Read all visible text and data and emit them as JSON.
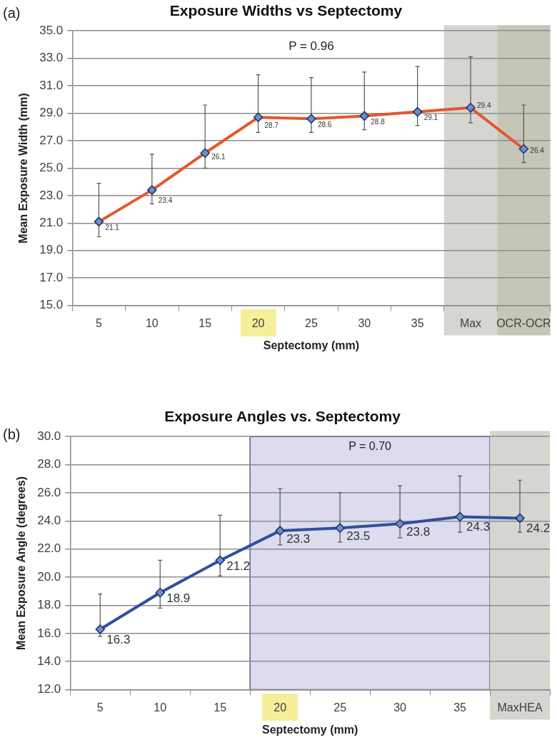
{
  "chart_data": [
    {
      "type": "line",
      "title": "Exposure Widths vs Septectomy",
      "xlabel": "Septectomy (mm)",
      "ylabel": "Mean Exposure Width (mm)",
      "categories": [
        "5",
        "10",
        "15",
        "20",
        "25",
        "30",
        "35",
        "Max",
        "OCR-OCR"
      ],
      "series": [
        {
          "color": "#e4572e",
          "values": [
            21.1,
            23.4,
            26.1,
            28.7,
            28.6,
            28.8,
            29.1,
            29.4,
            26.4
          ],
          "errors": [
            [
              20.0,
              23.9
            ],
            [
              22.4,
              26.0
            ],
            [
              25.0,
              29.6
            ],
            [
              27.6,
              31.8
            ],
            [
              27.6,
              31.6
            ],
            [
              27.8,
              32.0
            ],
            [
              28.1,
              32.4
            ],
            [
              28.3,
              33.1
            ],
            [
              25.4,
              29.6
            ]
          ]
        }
      ],
      "ylim": [
        15,
        35
      ],
      "yticks": [
        {
          "value": 15,
          "label": "15.0"
        },
        {
          "value": 17,
          "label": "17.0"
        },
        {
          "value": 19,
          "label": "19.0"
        },
        {
          "value": 21,
          "label": "21.0"
        },
        {
          "value": 23,
          "label": "23.0"
        },
        {
          "value": 25,
          "label": "25.0"
        },
        {
          "value": 27,
          "label": "27.0"
        },
        {
          "value": 29,
          "label": "29.0"
        },
        {
          "value": 31,
          "label": "31.0"
        },
        {
          "value": 33,
          "label": "33.0"
        },
        {
          "value": 35,
          "label": "35.0"
        }
      ],
      "grid": "y",
      "marker": "diamond",
      "data_labels": true,
      "bands": [
        {
          "axis": "x",
          "from": "Max",
          "to": "Max",
          "color": "#d6d6d0"
        },
        {
          "axis": "x",
          "from": "OCR-OCR",
          "to": "OCR-OCR",
          "color": "#c6c6b8"
        }
      ],
      "annotations": [
        "(a)",
        "P = 0.96"
      ]
    },
    {
      "type": "line",
      "title": "Exposure Angles vs. Septectomy",
      "xlabel": "Septectomy (mm)",
      "ylabel": "Mean Exposure Angle (degrees)",
      "categories": [
        "5",
        "10",
        "15",
        "20",
        "25",
        "30",
        "35",
        "MaxHEA"
      ],
      "series": [
        {
          "color": "#2f4f9f",
          "values": [
            16.3,
            18.9,
            21.2,
            23.3,
            23.5,
            23.8,
            24.3,
            24.2
          ],
          "errors": [
            [
              15.8,
              18.8
            ],
            [
              17.8,
              21.2
            ],
            [
              20.1,
              24.4
            ],
            [
              22.3,
              26.3
            ],
            [
              22.5,
              26.0
            ],
            [
              22.8,
              26.5
            ],
            [
              23.2,
              27.2
            ],
            [
              23.2,
              26.9
            ]
          ]
        }
      ],
      "ylim": [
        12,
        30
      ],
      "yticks": [
        {
          "value": 12,
          "label": "12.0"
        },
        {
          "value": 14,
          "label": "14.0"
        },
        {
          "value": 16,
          "label": "16.0"
        },
        {
          "value": 18,
          "label": "18.0"
        },
        {
          "value": 20,
          "label": "20.0"
        },
        {
          "value": 22,
          "label": "22.0"
        },
        {
          "value": 24,
          "label": "24.0"
        },
        {
          "value": 26,
          "label": "26.0"
        },
        {
          "value": 28,
          "label": "28.0"
        },
        {
          "value": 30,
          "label": "30.0"
        }
      ],
      "grid": "y",
      "marker": "diamond",
      "data_labels": true,
      "bands": [
        {
          "axis": "x",
          "from": "20",
          "to": "35",
          "label": "P = 0.70",
          "color": "#dcdcee"
        },
        {
          "axis": "x",
          "from": "MaxHEA",
          "to": "MaxHEA",
          "color": "#d6d6d0"
        }
      ],
      "annotations": [
        "(b)"
      ]
    }
  ]
}
